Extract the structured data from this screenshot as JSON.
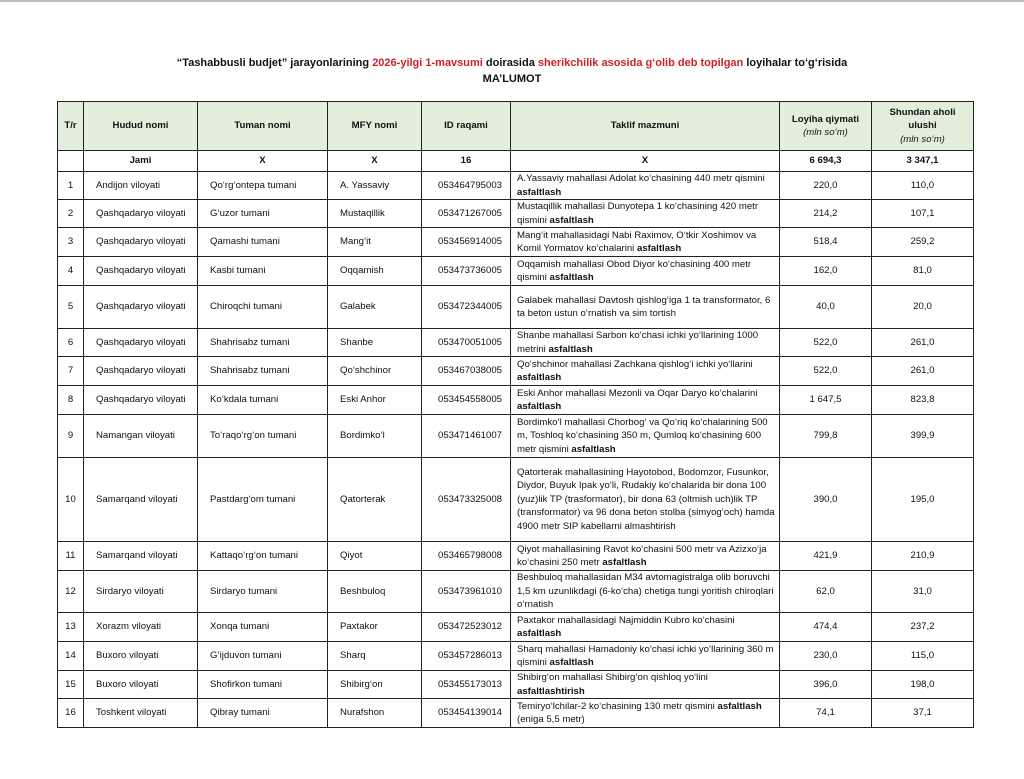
{
  "title": {
    "line1_a": "“Tashabbusli budjet” jarayonlarining ",
    "line1_b": "2026-yilgi 1-mavsumi",
    "line1_c": " doirasida ",
    "line1_d": "sherikchilik asosida g‘olib deb topilgan",
    "line1_e": " loyihalar to‘g‘risida",
    "line2": "MA’LUMOT"
  },
  "colors": {
    "header_bg": "#e3efdc",
    "accent_red": "#d0202a"
  },
  "headers": {
    "num": "T/r",
    "region": "Hudud nomi",
    "district": "Tuman nomi",
    "mfy": "MFY nomi",
    "id": "ID raqami",
    "proposal": "Taklif mazmuni",
    "cost": "Loyiha qiymati",
    "cost_unit": "(mln so‘m)",
    "share": "Shundan aholi ulushi",
    "share_unit": "(mln so‘m)"
  },
  "total": {
    "label": "Jami",
    "district": "X",
    "mfy": "X",
    "id": "16",
    "proposal": "X",
    "cost": "6 694,3",
    "share": "3 347,1"
  },
  "rows": [
    {
      "n": "1",
      "region": "Andijon viloyati",
      "district": "Qo‘rg‘ontepa tumani",
      "mfy": "A. Yassaviy",
      "id": "053464795003",
      "pre": "A.Yassaviy mahallasi Adolat ko‘chasining 440 metr qismini ",
      "bold": "asfaltlash",
      "post": "",
      "cost": "220,0",
      "share": "110,0"
    },
    {
      "n": "2",
      "region": "Qashqadaryo viloyati",
      "district": "G‘uzor tumani",
      "mfy": "Mustaqillik",
      "id": "053471267005",
      "pre": "Mustaqillik mahallasi Dunyotepa 1 ko‘chasining 420 metr qismini ",
      "bold": "asfaltlash",
      "post": "",
      "cost": "214,2",
      "share": "107,1"
    },
    {
      "n": "3",
      "region": "Qashqadaryo viloyati",
      "district": "Qamashi tumani",
      "mfy": "Mang‘it",
      "id": "053456914005",
      "pre": "Mang‘it mahallasidagi Nabi Raximov, O‘tkir Xoshimov va Komil Yormatov ko‘chalarini ",
      "bold": "asfaltlash",
      "post": "",
      "cost": "518,4",
      "share": "259,2"
    },
    {
      "n": "4",
      "region": "Qashqadaryo viloyati",
      "district": "Kasbi tumani",
      "mfy": "Oqqamish",
      "id": "053473736005",
      "pre": "Oqqamish mahallasi Obod Diyor ko‘chasining 400 metr qismini ",
      "bold": "asfaltlash",
      "post": "",
      "cost": "162,0",
      "share": "81,0"
    },
    {
      "n": "5",
      "region": "Qashqadaryo viloyati",
      "district": "Chiroqchi tumani",
      "mfy": "Galabek",
      "id": "053472344005",
      "pre": "Galabek mahallasi Davtosh qishlog‘iga 1 ta transformator, 6 ta beton ustun o‘rnatish va sim tortish",
      "bold": "",
      "post": "",
      "cost": "40,0",
      "share": "20,0"
    },
    {
      "n": "6",
      "region": "Qashqadaryo viloyati",
      "district": "Shahrisabz tumani",
      "mfy": "Shanbe",
      "id": "053470051005",
      "pre": "Shanbe mahallasi Sarbon ko‘chasi ichki yo‘llarining 1000 metrini ",
      "bold": "asfaltlash",
      "post": "",
      "cost": "522,0",
      "share": "261,0"
    },
    {
      "n": "7",
      "region": "Qashqadaryo viloyati",
      "district": "Shahrisabz tumani",
      "mfy": "Qo‘shchinor",
      "id": "053467038005",
      "pre": "Qo‘shchinor mahallasi Zachkana qishlog‘i ichki yo‘llarini ",
      "bold": "asfaltlash",
      "post": "",
      "cost": "522,0",
      "share": "261,0"
    },
    {
      "n": "8",
      "region": "Qashqadaryo viloyati",
      "district": "Ko‘kdala tumani",
      "mfy": "Eski Anhor",
      "id": "053454558005",
      "pre": "Eski Anhor mahallasi Mezonli va Oqar Daryo ko‘chalarini ",
      "bold": "asfaltlash",
      "post": "",
      "cost": "1 647,5",
      "share": "823,8"
    },
    {
      "n": "9",
      "region": "Namangan viloyati",
      "district": "To‘raqo‘rg‘on tumani",
      "mfy": "Bordimko‘l",
      "id": "053471461007",
      "pre": "Bordimko‘l mahallasi Chorbog‘ va Qo‘riq ko‘chalarining 500 m, Toshloq ko‘chasining 350 m, Qumloq ko‘chasining 600 metr qismini ",
      "bold": "asfaltlash",
      "post": "",
      "cost": "799,8",
      "share": "399,9"
    },
    {
      "n": "10",
      "region": "Samarqand viloyati",
      "district": "Pastdarg‘om tumani",
      "mfy": "Qatorterak",
      "id": "053473325008",
      "pre": "Qatorterak mahallasining Hayotobod, Bodomzor, Fusunkor, Diydor, Buyuk Ipak yo‘li, Rudakiy ko‘chalarida bir dona 100 (yuz)lik TP (trasformator), bir dona 63 (oltmish uch)lik TP (transformator) va 96 dona beton stolba (simyog‘och) hamda 4900 metr SIP kabellarni almashtirish",
      "bold": "",
      "post": "",
      "cost": "390,0",
      "share": "195,0"
    },
    {
      "n": "11",
      "region": "Samarqand viloyati",
      "district": "Kattaqo‘rg‘on tumani",
      "mfy": "Qiyot",
      "id": "053465798008",
      "pre": "Qiyot mahallasining Ravot ko‘chasini 500 metr va Azizxo‘ja ko‘chasini 250 metr ",
      "bold": "asfaltlash",
      "post": "",
      "cost": "421,9",
      "share": "210,9"
    },
    {
      "n": "12",
      "region": "Sirdaryo viloyati",
      "district": "Sirdaryo tumani",
      "mfy": "Beshbuloq",
      "id": "053473961010",
      "pre": "Beshbuloq mahallasidan M34 avtomagistralga olib boruvchi 1,5 km uzunlikdagi (6-ko‘cha) chetiga tungi yoritish chiroqlari o‘rnatish",
      "bold": "",
      "post": "",
      "cost": "62,0",
      "share": "31,0"
    },
    {
      "n": "13",
      "region": "Xorazm viloyati",
      "district": "Xonqa tumani",
      "mfy": "Paxtakor",
      "id": "053472523012",
      "pre": "Paxtakor mahallasidagi Najmiddin Kubro ko‘chasini ",
      "bold": "asfaltlash",
      "post": "",
      "cost": "474,4",
      "share": "237,2"
    },
    {
      "n": "14",
      "region": "Buxoro viloyati",
      "district": "G‘ijduvon tumani",
      "mfy": "Sharq",
      "id": "053457286013",
      "pre": "Sharq mahallasi Hamadoniy ko‘chasi ichki yo‘llarining 360 m qismini ",
      "bold": "asfaltlash",
      "post": "",
      "cost": "230,0",
      "share": "115,0"
    },
    {
      "n": "15",
      "region": "Buxoro viloyati",
      "district": "Shofirkon tumani",
      "mfy": "Shibirg‘on",
      "id": "053455173013",
      "pre": "Shibirg‘on mahallasi Shibirg‘on qishloq yo‘lini ",
      "bold": "asfaltlashtirish",
      "post": "",
      "cost": "396,0",
      "share": "198,0"
    },
    {
      "n": "16",
      "region": "Toshkent viloyati",
      "district": "Qibray tumani",
      "mfy": "Nurafshon",
      "id": "053454139014",
      "pre": "Temiryo‘lchilar-2 ko‘chasining 130 metr qismini ",
      "bold": "asfaltlash",
      "post": " (eniga 5,5 metr)",
      "cost": "74,1",
      "share": "37,1"
    }
  ]
}
